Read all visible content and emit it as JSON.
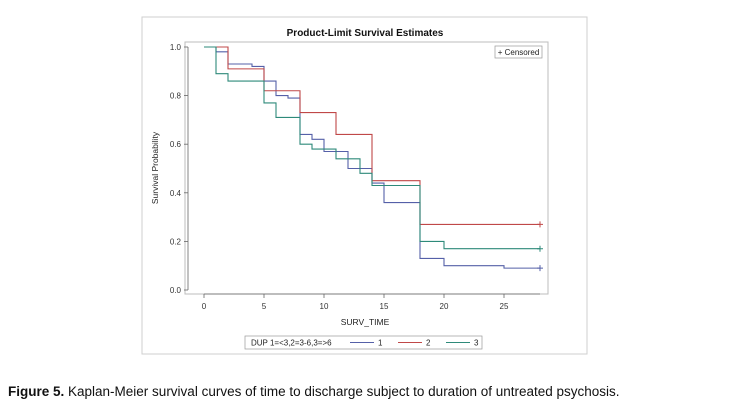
{
  "caption": {
    "label": "Figure 5.",
    "text": " Kaplan-Meier survival curves of time to discharge subject to duration of untreated psychosis."
  },
  "chart_data": {
    "type": "line",
    "title": "Product-Limit Survival Estimates",
    "xlabel": "SURV_TIME",
    "ylabel": "Survival Probability",
    "xlim": [
      0,
      28
    ],
    "ylim": [
      0,
      1.0
    ],
    "x_ticks": [
      "0",
      "5",
      "10",
      "15",
      "20",
      "25"
    ],
    "y_ticks": [
      "0.0",
      "0.2",
      "0.4",
      "0.6",
      "0.8",
      "1.0"
    ],
    "grid": false,
    "censored_legend": "+ Censored",
    "legend": {
      "title": "DUP 1=<3,2=3-6,3=>6",
      "position": "bottom"
    },
    "step": true,
    "series": [
      {
        "name": "1",
        "color": "#5560a8",
        "x": [
          0,
          1,
          2,
          4,
          5,
          6,
          7,
          8,
          9,
          10,
          12,
          14,
          15,
          18,
          20,
          25,
          28
        ],
        "y": [
          1.0,
          0.98,
          0.93,
          0.92,
          0.86,
          0.8,
          0.79,
          0.64,
          0.62,
          0.57,
          0.5,
          0.44,
          0.36,
          0.13,
          0.1,
          0.09,
          0.09
        ],
        "censored": [
          [
            28,
            0.09
          ]
        ]
      },
      {
        "name": "2",
        "color": "#c04848",
        "x": [
          0,
          2,
          3,
          5,
          8,
          11,
          14,
          18,
          28
        ],
        "y": [
          1.0,
          0.91,
          0.91,
          0.82,
          0.73,
          0.64,
          0.45,
          0.27,
          0.27
        ],
        "censored": [
          [
            28,
            0.27
          ]
        ]
      },
      {
        "name": "3",
        "color": "#2e8a7a",
        "x": [
          0,
          1,
          2,
          5,
          6,
          8,
          9,
          11,
          13,
          14,
          18,
          20,
          28
        ],
        "y": [
          1.0,
          0.89,
          0.86,
          0.77,
          0.71,
          0.6,
          0.58,
          0.54,
          0.48,
          0.43,
          0.2,
          0.17,
          0.17
        ],
        "censored": [
          [
            28,
            0.17
          ]
        ]
      }
    ]
  }
}
